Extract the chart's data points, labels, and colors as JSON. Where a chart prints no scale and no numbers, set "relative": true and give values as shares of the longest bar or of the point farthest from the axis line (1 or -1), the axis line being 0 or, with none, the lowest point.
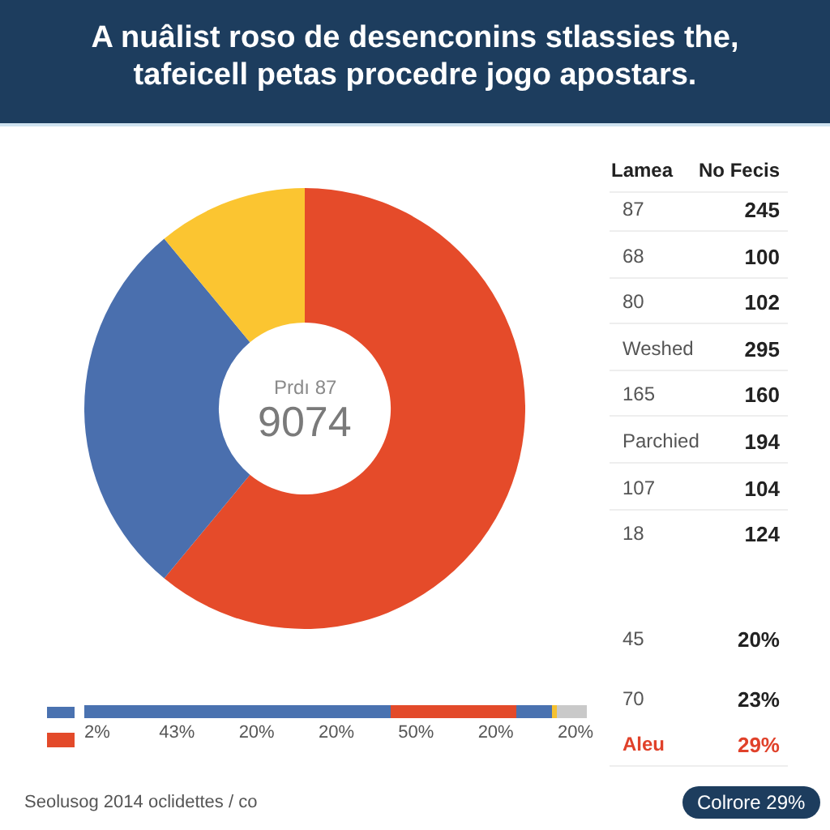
{
  "chart_data": [
    {
      "type": "donut",
      "title": "A nuâlist roso de desenconins stlassies the, tafeicell petas procedre jogo apostars.",
      "categories": [
        null,
        null,
        null
      ],
      "values": [
        61,
        28,
        11
      ],
      "colors": [
        "#e54b2a",
        "#4a6fae",
        "#fbc531"
      ],
      "annotations": [
        "Prdı 87",
        "9074",
        "Seolusog 2014 oclidettes / co"
      ]
    },
    {
      "type": "other",
      "annotations": [
        "Lamea",
        "No Fecis",
        "87",
        "245",
        "68",
        "100",
        "80",
        "102",
        "Weshed",
        "295",
        "165",
        "160",
        "Parchied",
        "194",
        "107",
        "104",
        "18",
        "124",
        "45",
        "20%",
        "70",
        "23%",
        "Aleu",
        "29%",
        "Colrore 29%"
      ]
    },
    {
      "type": "bar",
      "orientation": "horizontal",
      "stacked": true,
      "relative": true,
      "categories": [
        null
      ],
      "series": [
        {
          "color": "#4a72b0",
          "values": [
            0.61
          ]
        },
        {
          "color": "#e34a2a",
          "values": [
            0.25
          ]
        },
        {
          "color": "#4a72b0",
          "values": [
            0.07
          ]
        },
        {
          "color": "#f5c130",
          "values": [
            0.01
          ]
        },
        {
          "color": "#c9c9c9",
          "values": [
            0.06
          ]
        }
      ],
      "annotations": [
        "2%",
        "43%",
        "20%",
        "20%",
        "50%",
        "20%",
        "20%"
      ]
    }
  ]
}
